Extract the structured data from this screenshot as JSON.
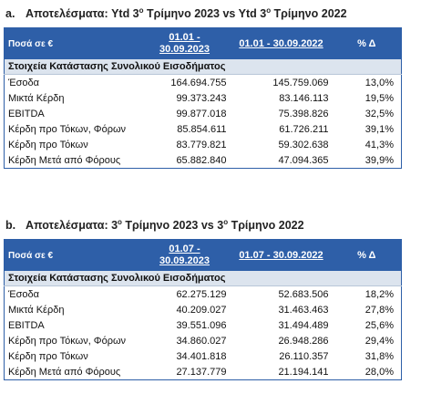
{
  "sections": [
    {
      "label": "a.",
      "title": [
        "Αποτελέσματα: Ytd 3",
        "ο",
        " Τρίμηνο 2023 vs Ytd 3",
        "ο",
        " Τρίμηνο 2022"
      ],
      "table": {
        "header": [
          "Ποσά σε €",
          "01.01 - 30.09.2023",
          "01.01 - 30.09.2022",
          "% Δ"
        ],
        "group": "Στοιχεία Κατάστασης Συνολικού Εισοδήματος",
        "rows": [
          [
            "Έσοδα",
            "164.694.755",
            "145.759.069",
            "13,0%"
          ],
          [
            "Μικτά Κέρδη",
            "99.373.243",
            "83.146.113",
            "19,5%"
          ],
          [
            "EBITDA",
            "99.877.018",
            "75.398.826",
            "32,5%"
          ],
          [
            "Κέρδη προ Τόκων, Φόρων",
            "85.854.611",
            "61.726.211",
            "39,1%"
          ],
          [
            "Κέρδη προ Τόκων",
            "83.779.821",
            "59.302.638",
            "41,3%"
          ],
          [
            "Κέρδη Μετά από Φόρους",
            "65.882.840",
            "47.094.365",
            "39,9%"
          ]
        ]
      }
    },
    {
      "label": "b.",
      "title": [
        "Αποτελέσματα: 3",
        "ο",
        " Τρίμηνο 2023 vs 3",
        "ο",
        " Τρίμηνο 2022"
      ],
      "table": {
        "header": [
          "Ποσά σε €",
          "01.07 - 30.09.2023",
          "01.07 - 30.09.2022",
          "% Δ"
        ],
        "group": "Στοιχεία Κατάστασης Συνολικού Εισοδήματος",
        "rows": [
          [
            "Έσοδα",
            "62.275.129",
            "52.683.506",
            "18,2%"
          ],
          [
            "Μικτά Κέρδη",
            "40.209.027",
            "31.463.463",
            "27,8%"
          ],
          [
            "EBITDA",
            "39.551.096",
            "31.494.489",
            "25,6%"
          ],
          [
            "Κέρδη προ Τόκων, Φόρων",
            "34.860.027",
            "26.948.286",
            "29,4%"
          ],
          [
            "Κέρδη προ Τόκων",
            "34.401.818",
            "26.110.357",
            "31,8%"
          ],
          [
            "Κέρδη Μετά από Φόρους",
            "27.137.779",
            "21.194.141",
            "28,0%"
          ]
        ]
      }
    }
  ]
}
